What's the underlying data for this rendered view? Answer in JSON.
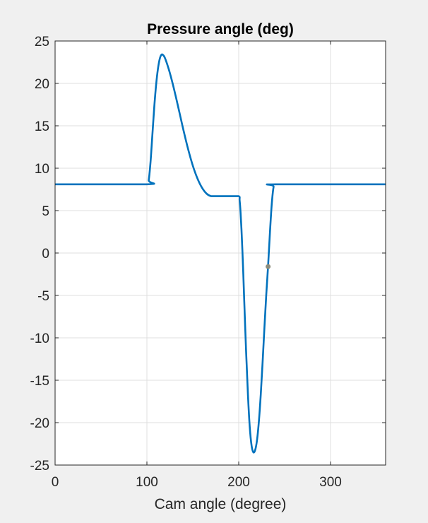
{
  "chart_data": {
    "type": "line",
    "title": "Pressure angle (deg)",
    "xlabel": "Cam angle (degree)",
    "ylabel": "",
    "xlim": [
      0,
      360
    ],
    "ylim": [
      -25,
      25
    ],
    "xticks": [
      0,
      100,
      200,
      300
    ],
    "yticks": [
      25,
      20,
      15,
      10,
      5,
      0,
      -5,
      -10,
      -15,
      -20,
      -25
    ],
    "grid": true,
    "series": [
      {
        "color": "#0072bd",
        "x": [
          0,
          100,
          102,
          104,
          106,
          108,
          110,
          112,
          114,
          116,
          118,
          120,
          124,
          128,
          132,
          136,
          140,
          145,
          150,
          155,
          160,
          165,
          170,
          175,
          180,
          190,
          200,
          201,
          202,
          203,
          204,
          205,
          206,
          208,
          210,
          212,
          214,
          216,
          218,
          220,
          222,
          224,
          226,
          228,
          230,
          232,
          234,
          236,
          238,
          240,
          360
        ],
        "y": [
          8.1,
          8.1,
          8.6,
          10.8,
          14.0,
          17.2,
          19.8,
          21.7,
          22.9,
          23.4,
          23.3,
          22.9,
          21.6,
          20.0,
          18.2,
          16.3,
          14.4,
          12.2,
          10.3,
          8.8,
          7.7,
          7.0,
          6.7,
          6.7,
          6.7,
          6.7,
          6.7,
          6.2,
          4.8,
          2.8,
          0.3,
          -2.5,
          -5.6,
          -11.5,
          -16.6,
          -20.5,
          -22.7,
          -23.5,
          -23.2,
          -22.0,
          -19.8,
          -16.7,
          -12.9,
          -8.8,
          -4.9,
          -1.5,
          2.4,
          5.8,
          7.8,
          8.1,
          8.1
        ]
      }
    ],
    "marker": {
      "x": 232,
      "y": -1.6,
      "color": "#8c8c7c"
    }
  }
}
